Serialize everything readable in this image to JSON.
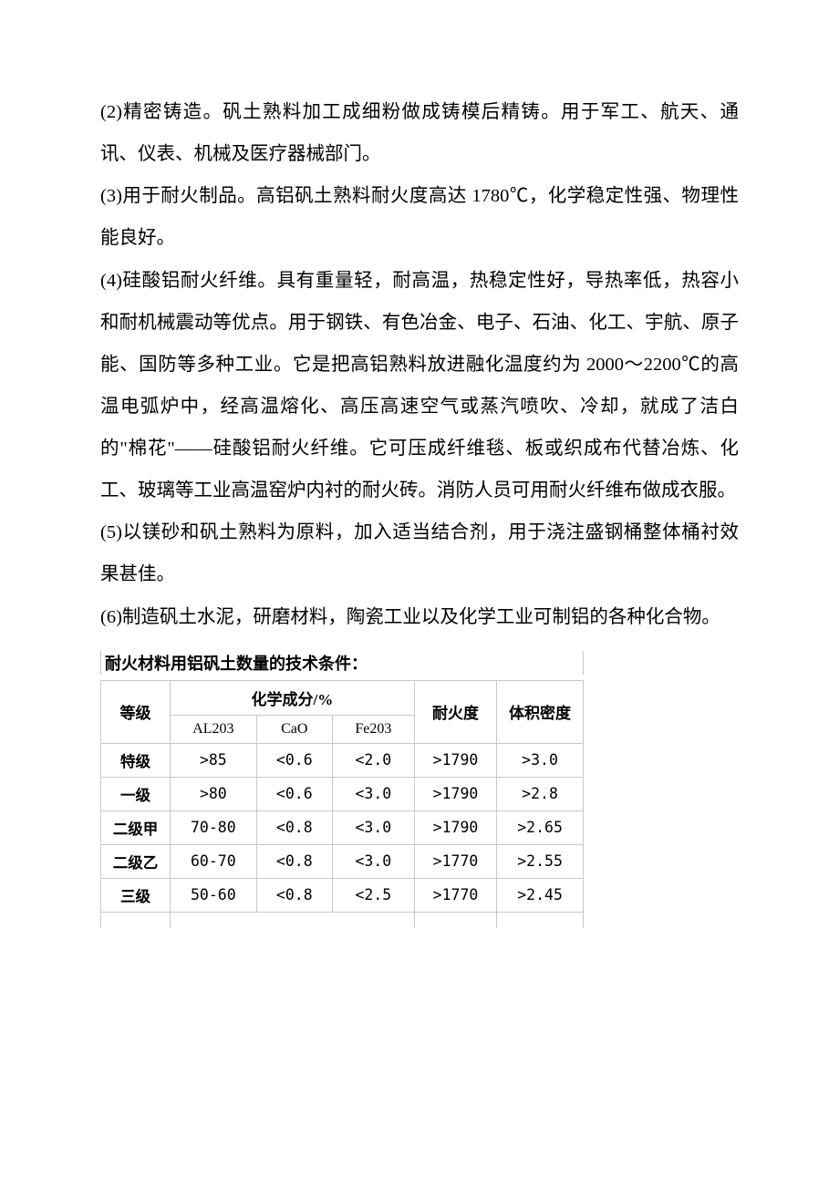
{
  "paragraphs": {
    "p2": "(2)精密铸造。矾土熟料加工成细粉做成铸模后精铸。用于军工、航天、通讯、仪表、机械及医疗器械部门。",
    "p3": "(3)用于耐火制品。高铝矾土熟料耐火度高达 1780℃，化学稳定性强、物理性能良好。",
    "p4": "(4)硅酸铝耐火纤维。具有重量轻，耐高温，热稳定性好，导热率低，热容小和耐机械震动等优点。用于钢铁、有色冶金、电子、石油、化工、宇航、原子能、国防等多种工业。它是把高铝熟料放进融化温度约为 2000～2200℃的高温电弧炉中，经高温熔化、高压高速空气或蒸汽喷吹、冷却，就成了洁白的\"棉花\"——硅酸铝耐火纤维。它可压成纤维毯、板或织成布代替冶炼、化工、玻璃等工业高温窑炉内衬的耐火砖。消防人员可用耐火纤维布做成衣服。",
    "p5": "(5)以镁砂和矾土熟料为原料，加入适当结合剂，用于浇注盛钢桶整体桶衬效果甚佳。",
    "p6": "(6)制造矾土水泥，研磨材料，陶瓷工业以及化学工业可制铝的各种化合物。"
  },
  "table": {
    "title": "耐火材料用铝矾土数量的技术条件：",
    "headers": {
      "grade": "等级",
      "chem": "化学成分/%",
      "al203": "AL203",
      "cao": "CaO",
      "fe203": "Fe203",
      "refractoriness": "耐火度",
      "density": "体积密度"
    },
    "rows": [
      {
        "grade": "特级",
        "al203": ">85",
        "cao": "<0.6",
        "fe203": "<2.0",
        "refrac": ">1790",
        "density": ">3.0"
      },
      {
        "grade": "一级",
        "al203": ">80",
        "cao": "<0.6",
        "fe203": "<3.0",
        "refrac": ">1790",
        "density": ">2.8"
      },
      {
        "grade": "二级甲",
        "al203": "70-80",
        "cao": "<0.8",
        "fe203": "<3.0",
        "refrac": ">1790",
        "density": ">2.65"
      },
      {
        "grade": "二级乙",
        "al203": "60-70",
        "cao": "<0.8",
        "fe203": "<3.0",
        "refrac": ">1770",
        "density": ">2.55"
      },
      {
        "grade": "三级",
        "al203": "50-60",
        "cao": "<0.8",
        "fe203": "<2.5",
        "refrac": ">1770",
        "density": ">2.45"
      }
    ],
    "styling": {
      "border_color": "#c8c8c8",
      "header_font_weight": "bold",
      "text_color": "#000000",
      "background": "#ffffff"
    }
  }
}
